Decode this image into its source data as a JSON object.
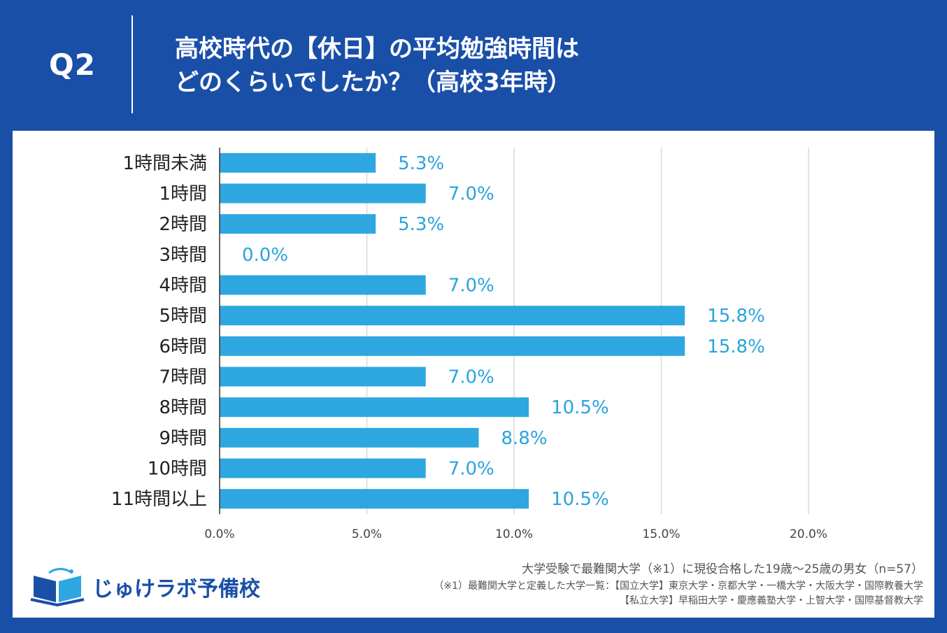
{
  "header": {
    "question": "Q2",
    "title_line1": "高校時代の【休日】の平均勉強時間は",
    "title_line2": "どのくらいでしたか？（高校3年時）"
  },
  "colors": {
    "background": "#1a4fa8",
    "bar": "#2ea7e0",
    "value_label": "#2aa3dd",
    "grid": "#d9d9d9"
  },
  "chart_data": {
    "type": "bar",
    "orientation": "horizontal",
    "categories": [
      "1時間未満",
      "1時間",
      "2時間",
      "3時間",
      "4時間",
      "5時間",
      "6時間",
      "7時間",
      "8時間",
      "9時間",
      "10時間",
      "11時間以上"
    ],
    "values": [
      5.3,
      7.0,
      5.3,
      0.0,
      7.0,
      15.8,
      15.8,
      7.0,
      10.5,
      8.8,
      7.0,
      10.5
    ],
    "value_labels": [
      "5.3%",
      "7.0%",
      "5.3%",
      "0.0%",
      "7.0%",
      "15.8%",
      "15.8%",
      "7.0%",
      "10.5%",
      "8.8%",
      "7.0%",
      "10.5%"
    ],
    "xlim": [
      0,
      20
    ],
    "x_ticks": [
      0,
      5,
      10,
      15,
      20
    ],
    "x_tick_labels": [
      "0.0%",
      "5.0%",
      "10.0%",
      "15.0%",
      "20.0%"
    ],
    "grid": true,
    "title": "",
    "xlabel": "",
    "ylabel": ""
  },
  "footer": {
    "note1": "大学受験で最難関大学（※1）に現役合格した19歳〜25歳の男女（n=57）",
    "note2": "（※1）最難関大学と定義した大学一覧：【国立大学】東京大学・京都大学・一橋大学・大阪大学・国際教養大学",
    "note3": "【私立大学】早稲田大学・慶應義塾大学・上智大学・国際基督教大学",
    "logo_text": "じゅけラボ予備校"
  }
}
